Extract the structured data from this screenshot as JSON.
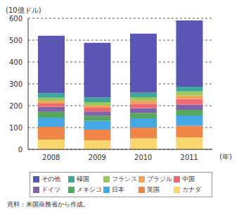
{
  "chart_data": {
    "type": "bar",
    "stacked": true,
    "grid": true,
    "y_axis_label": "(10億ドル)",
    "x_axis_label": "(年)",
    "source": "資料：米国商務省から作成。",
    "categories": [
      "2008",
      "2009",
      "2010",
      "2011"
    ],
    "ylim": [
      0,
      600
    ],
    "yticks": [
      0,
      100,
      200,
      300,
      400,
      500,
      600
    ],
    "series": [
      {
        "name": "カナダ",
        "color": "#f9d66e",
        "values": [
          45,
          42,
          50,
          55
        ]
      },
      {
        "name": "英国",
        "color": "#ef8547",
        "values": [
          58,
          48,
          50,
          53
        ]
      },
      {
        "name": "日本",
        "color": "#46a7e6",
        "values": [
          42,
          41,
          42,
          47
        ]
      },
      {
        "name": "メキシコ",
        "color": "#56a95c",
        "values": [
          27,
          22,
          25,
          26
        ]
      },
      {
        "name": "ドイツ",
        "color": "#7f63a8",
        "values": [
          22,
          20,
          22,
          24
        ]
      },
      {
        "name": "中国",
        "color": "#ee6a73",
        "values": [
          16,
          17,
          20,
          26
        ]
      },
      {
        "name": "ブラジル",
        "color": "#f4a259",
        "values": [
          12,
          12,
          14,
          16
        ]
      },
      {
        "name": "フランス",
        "color": "#9cc75a",
        "values": [
          14,
          14,
          16,
          18
        ]
      },
      {
        "name": "韓国",
        "color": "#3ea59a",
        "values": [
          21,
          21,
          21,
          22
        ]
      },
      {
        "name": "その他",
        "color": "#5b56b3",
        "values": [
          263,
          251,
          270,
          303
        ]
      }
    ]
  }
}
